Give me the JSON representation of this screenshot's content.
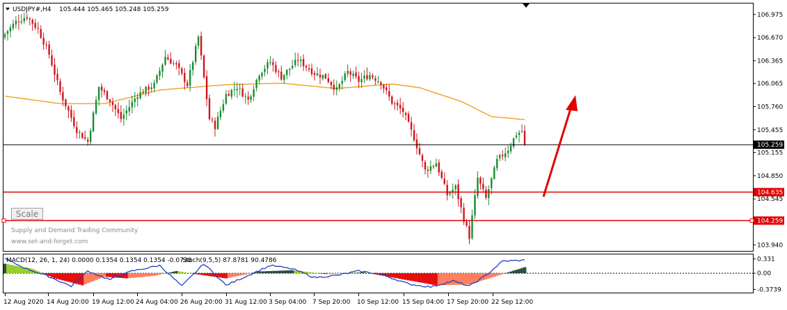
{
  "header": {
    "dropdown_icon": "triangle-down-icon",
    "symbol": "USDJPY#,H4",
    "ohlc": "105.444 105.465 105.248 105.259"
  },
  "watermark": {
    "line1": "Supply and Demand Trading Community",
    "line2": "www.set-and-forget.com"
  },
  "scale_button": "Scale",
  "price_axis": {
    "ticks": [
      "106.975",
      "106.670",
      "106.365",
      "106.065",
      "105.760",
      "105.455",
      "105.155",
      "104.850",
      "104.545",
      "103.940"
    ],
    "current_price_label": "105.259",
    "level_labels": [
      "104.635",
      "104.259"
    ]
  },
  "indicator": {
    "label_part1": "MACD(12, 26, 1, 24) 0.0000 0.1354 0.1354 0.1354 -0.0738",
    "label_part2": "Stoch(9,5,5) 87.8781 90.4786",
    "axis_ticks": [
      "0.331",
      "0.00",
      "-0.3739"
    ]
  },
  "time_axis": [
    "12 Aug 2020",
    "14 Aug 20:00",
    "19 Aug 12:00",
    "24 Aug 04:00",
    "26 Aug 20:00",
    "31 Aug 12:00",
    "3 Sep 04:00",
    "7 Sep 20:00",
    "10 Sep 12:00",
    "15 Sep 04:00",
    "17 Sep 20:00",
    "22 Sep 12:00"
  ],
  "colors": {
    "bull": "#1a8c2e",
    "bear": "#d0141c",
    "moving_average": "#f0a020",
    "level_line": "#e00000",
    "arrow": "#e00000",
    "stoch": "#1f3fbf",
    "histo_pos_dark": "#2f4f3f",
    "histo_pos_light": "#9acd32",
    "histo_neg_dark": "#e41010",
    "histo_neg_light": "#ff7f5f"
  },
  "chart_data": {
    "type": "candlestick",
    "symbol": "USDJPY#",
    "timeframe": "H4",
    "ylim": [
      103.86,
      107.12
    ],
    "current_price": 105.259,
    "horizontal_levels": [
      104.635,
      104.259
    ],
    "anchors": [
      {
        "t": 0,
        "p": 106.72
      },
      {
        "t": 4,
        "p": 106.88
      },
      {
        "t": 8,
        "p": 106.95
      },
      {
        "t": 12,
        "p": 106.78
      },
      {
        "t": 16,
        "p": 106.45
      },
      {
        "t": 20,
        "p": 105.95
      },
      {
        "t": 26,
        "p": 105.45
      },
      {
        "t": 30,
        "p": 105.3
      },
      {
        "t": 34,
        "p": 106.02
      },
      {
        "t": 38,
        "p": 105.85
      },
      {
        "t": 42,
        "p": 105.6
      },
      {
        "t": 48,
        "p": 105.92
      },
      {
        "t": 54,
        "p": 106.05
      },
      {
        "t": 58,
        "p": 106.42
      },
      {
        "t": 62,
        "p": 106.3
      },
      {
        "t": 66,
        "p": 106.05
      },
      {
        "t": 70,
        "p": 106.68
      },
      {
        "t": 74,
        "p": 105.6
      },
      {
        "t": 76,
        "p": 105.5
      },
      {
        "t": 80,
        "p": 105.92
      },
      {
        "t": 84,
        "p": 106.02
      },
      {
        "t": 88,
        "p": 105.85
      },
      {
        "t": 92,
        "p": 106.2
      },
      {
        "t": 96,
        "p": 106.35
      },
      {
        "t": 100,
        "p": 106.15
      },
      {
        "t": 106,
        "p": 106.38
      },
      {
        "t": 112,
        "p": 106.2
      },
      {
        "t": 116,
        "p": 106.15
      },
      {
        "t": 120,
        "p": 105.98
      },
      {
        "t": 124,
        "p": 106.22
      },
      {
        "t": 128,
        "p": 106.1
      },
      {
        "t": 132,
        "p": 106.18
      },
      {
        "t": 136,
        "p": 106.08
      },
      {
        "t": 140,
        "p": 105.82
      },
      {
        "t": 144,
        "p": 105.7
      },
      {
        "t": 148,
        "p": 105.35
      },
      {
        "t": 152,
        "p": 104.92
      },
      {
        "t": 156,
        "p": 105.02
      },
      {
        "t": 160,
        "p": 104.6
      },
      {
        "t": 163,
        "p": 104.7
      },
      {
        "t": 166,
        "p": 104.28
      },
      {
        "t": 168,
        "p": 104.05
      },
      {
        "t": 171,
        "p": 104.82
      },
      {
        "t": 174,
        "p": 104.55
      },
      {
        "t": 178,
        "p": 105.05
      },
      {
        "t": 182,
        "p": 105.2
      },
      {
        "t": 185,
        "p": 105.4
      },
      {
        "t": 187,
        "p": 105.44
      },
      {
        "t": 188,
        "p": 105.259
      }
    ],
    "moving_average": [
      {
        "t": 0,
        "p": 105.9
      },
      {
        "t": 20,
        "p": 105.8
      },
      {
        "t": 36,
        "p": 105.8
      },
      {
        "t": 56,
        "p": 105.98
      },
      {
        "t": 80,
        "p": 106.05
      },
      {
        "t": 100,
        "p": 106.07
      },
      {
        "t": 120,
        "p": 106.0
      },
      {
        "t": 140,
        "p": 106.06
      },
      {
        "t": 150,
        "p": 106.01
      },
      {
        "t": 165,
        "p": 105.83
      },
      {
        "t": 176,
        "p": 105.63
      },
      {
        "t": 188,
        "p": 105.59
      }
    ],
    "indicator": {
      "ylim": [
        -0.45,
        0.42
      ],
      "histogram_anchors": [
        {
          "t": 0,
          "v": 0.22
        },
        {
          "t": 10,
          "v": 0.1
        },
        {
          "t": 18,
          "v": -0.12
        },
        {
          "t": 28,
          "v": -0.28
        },
        {
          "t": 36,
          "v": -0.08
        },
        {
          "t": 44,
          "v": -0.12
        },
        {
          "t": 54,
          "v": -0.06
        },
        {
          "t": 62,
          "v": 0.05
        },
        {
          "t": 70,
          "v": -0.03
        },
        {
          "t": 80,
          "v": -0.12
        },
        {
          "t": 92,
          "v": 0.04
        },
        {
          "t": 104,
          "v": 0.07
        },
        {
          "t": 116,
          "v": -0.02
        },
        {
          "t": 130,
          "v": 0.02
        },
        {
          "t": 142,
          "v": -0.12
        },
        {
          "t": 156,
          "v": -0.28
        },
        {
          "t": 168,
          "v": -0.26
        },
        {
          "t": 178,
          "v": -0.06
        },
        {
          "t": 184,
          "v": 0.06
        },
        {
          "t": 188,
          "v": 0.14
        }
      ],
      "stoch_anchors": [
        {
          "t": 0,
          "v": 0.33
        },
        {
          "t": 8,
          "v": 0.1
        },
        {
          "t": 16,
          "v": -0.08
        },
        {
          "t": 24,
          "v": -0.3
        },
        {
          "t": 30,
          "v": 0.05
        },
        {
          "t": 38,
          "v": -0.15
        },
        {
          "t": 46,
          "v": 0.05
        },
        {
          "t": 56,
          "v": 0.18
        },
        {
          "t": 64,
          "v": -0.3
        },
        {
          "t": 72,
          "v": 0.22
        },
        {
          "t": 80,
          "v": -0.28
        },
        {
          "t": 88,
          "v": -0.05
        },
        {
          "t": 96,
          "v": 0.18
        },
        {
          "t": 104,
          "v": 0.1
        },
        {
          "t": 112,
          "v": -0.1
        },
        {
          "t": 120,
          "v": -0.05
        },
        {
          "t": 128,
          "v": 0.05
        },
        {
          "t": 136,
          "v": -0.02
        },
        {
          "t": 146,
          "v": -0.25
        },
        {
          "t": 154,
          "v": -0.32
        },
        {
          "t": 162,
          "v": -0.18
        },
        {
          "t": 168,
          "v": -0.3
        },
        {
          "t": 174,
          "v": -0.05
        },
        {
          "t": 180,
          "v": 0.28
        },
        {
          "t": 188,
          "v": 0.3
        }
      ]
    }
  }
}
